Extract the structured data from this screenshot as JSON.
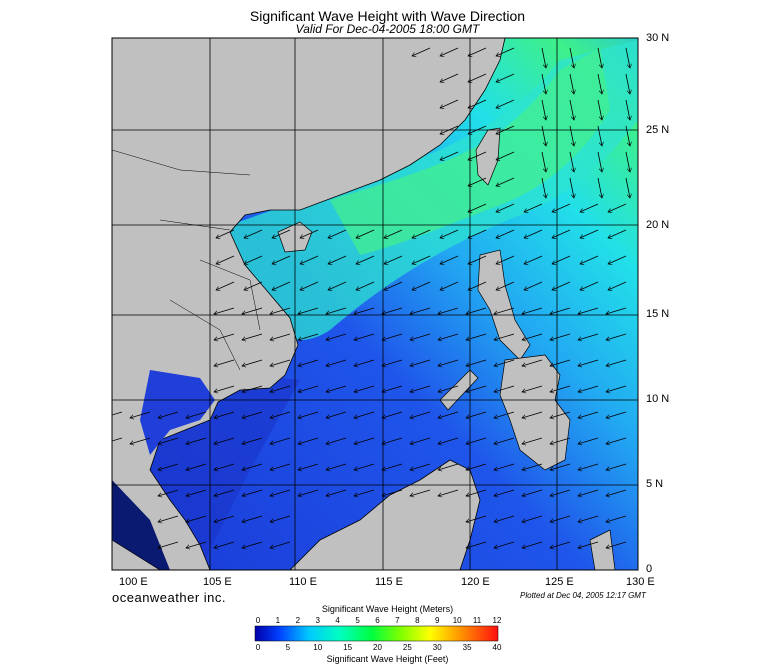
{
  "title": "Significant Wave Height with Wave Direction",
  "subtitle": "Valid For Dec-04-2005 18:00 GMT",
  "lat_labels": [
    "30 N",
    "25 N",
    "20 N",
    "15 N",
    "10 N",
    "5 N",
    "0"
  ],
  "lon_labels": [
    "100 E",
    "105 E",
    "110 E",
    "115 E",
    "120 E",
    "125 E",
    "130 E"
  ],
  "brand": "oceanweather inc.",
  "plotted_at": "Plotted at Dec 04, 2005 12:17 GMT",
  "colorbar": {
    "title_top": "Significant Wave Height (Meters)",
    "title_bottom": "Significant Wave Height (Feet)",
    "meters": [
      "0",
      "1",
      "2",
      "3",
      "4",
      "5",
      "6",
      "7",
      "8",
      "9",
      "10",
      "11",
      "12"
    ],
    "feet": [
      "0",
      "5",
      "10",
      "15",
      "20",
      "25",
      "30",
      "35",
      "40"
    ]
  },
  "colors": {
    "land": "#c0c0c0",
    "deep_blue": "#1e3fd8",
    "mid_blue": "#2a6af0",
    "cyan": "#22d6f0",
    "green": "#33f07a"
  }
}
